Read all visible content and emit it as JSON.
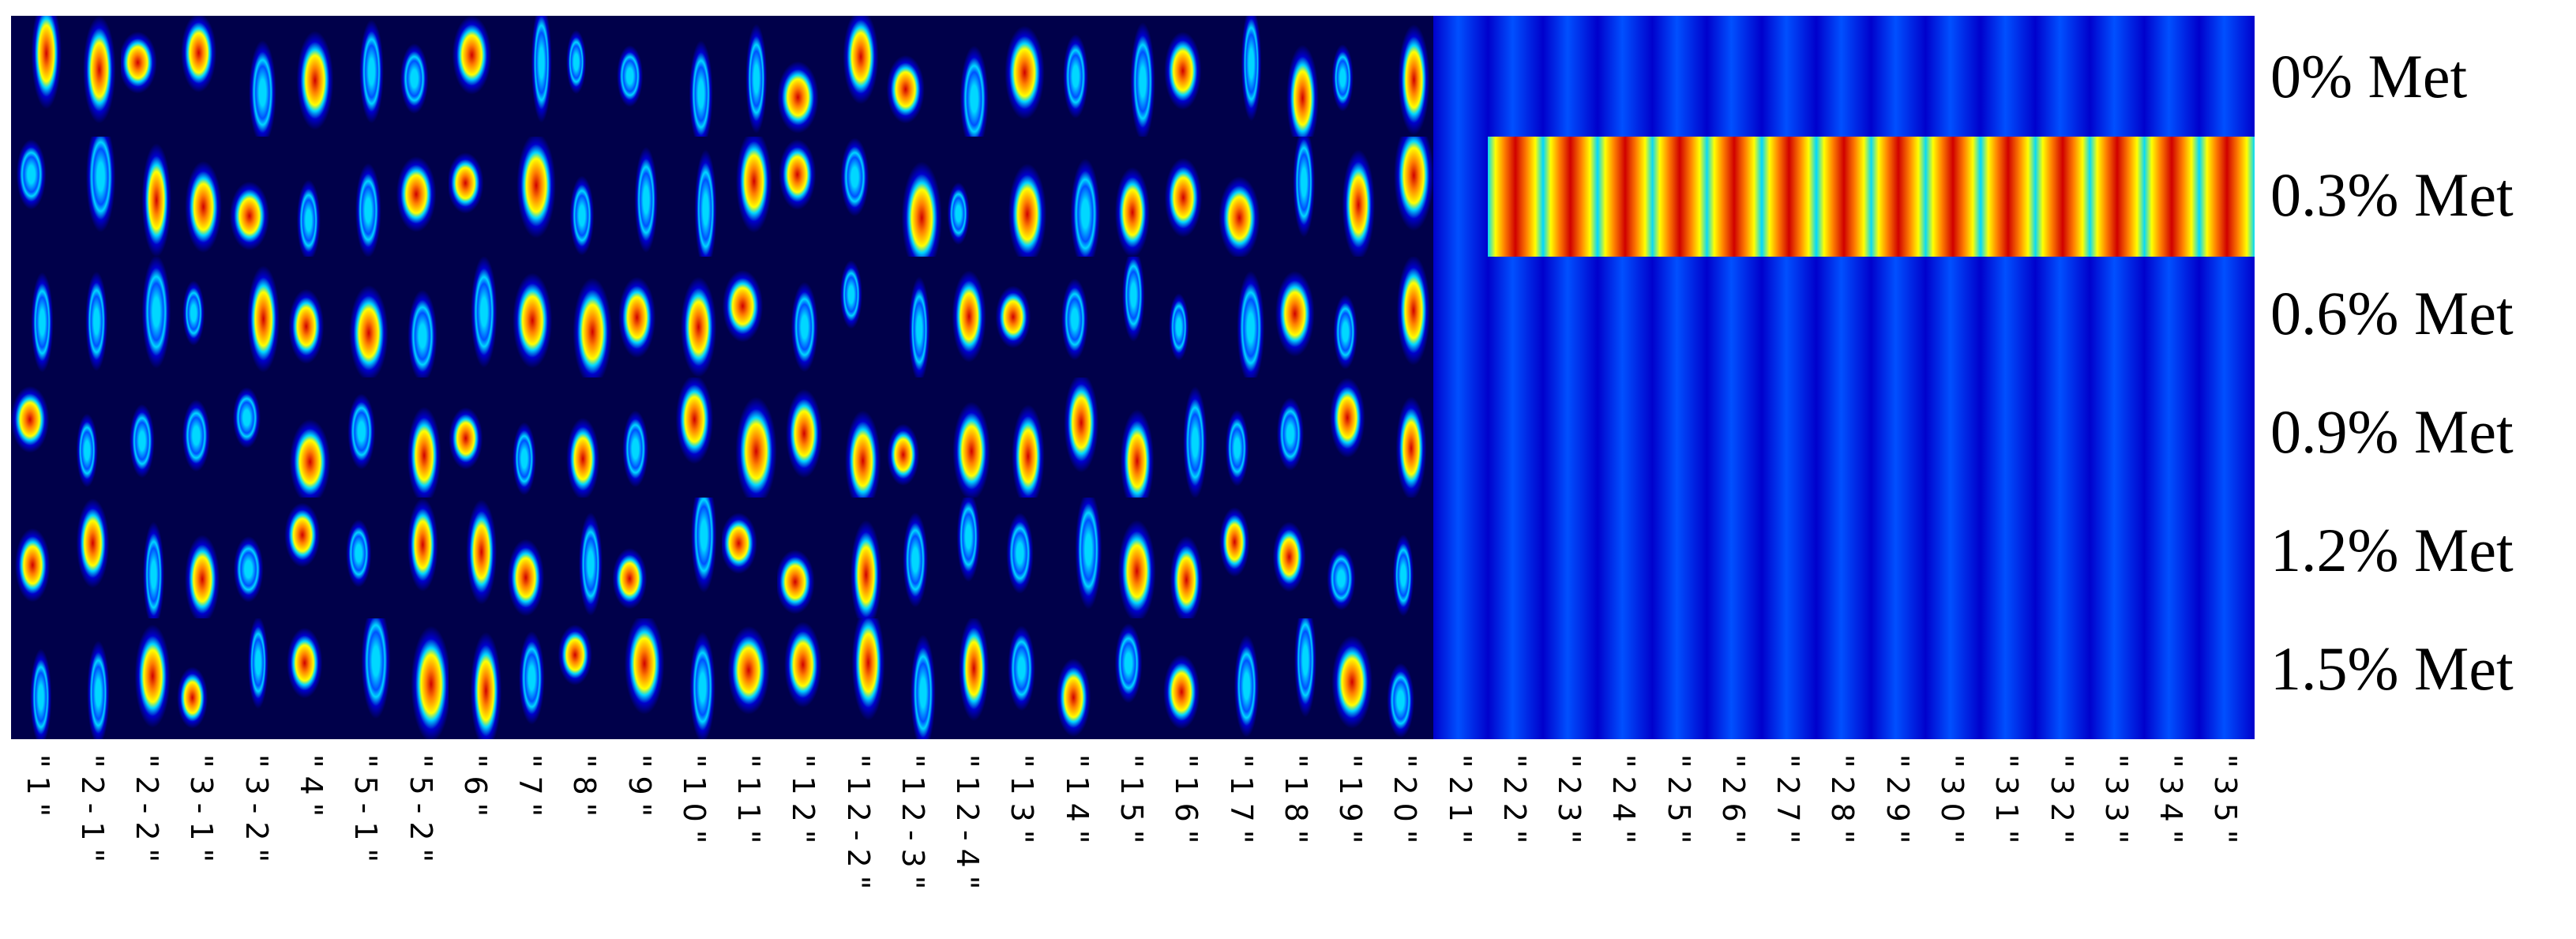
{
  "figure": {
    "row_labels": [
      "0% Met",
      "0.3% Met",
      "0.6% Met",
      "0.9% Met",
      "1.2% Met",
      "1.5% Met"
    ],
    "column_labels": [
      "\"1\"",
      "\"2-1\"",
      "\"2-2\"",
      "\"3-1\"",
      "\"3-2\"",
      "\"4\"",
      "\"5-1\"",
      "\"5-2\"",
      "\"6\"",
      "\"7\"",
      "\"8\"",
      "\"9\"",
      "\"10\"",
      "\"11\"",
      "\"12\"",
      "\"12-2\"",
      "\"12-3\"",
      "\"12-4\"",
      "\"13\"",
      "\"14\"",
      "\"15\"",
      "\"16\"",
      "\"17\"",
      "\"18\"",
      "\"19\"",
      "\"20\"",
      "\"21\"",
      "\"22\"",
      "\"23\"",
      "\"24\"",
      "\"25\"",
      "\"26\"",
      "\"27\"",
      "\"28\"",
      "\"29\"",
      "\"30\"",
      "\"31\"",
      "\"32\"",
      "\"33\"",
      "\"34\"",
      "\"35\""
    ],
    "colormap": [
      "#00004a",
      "#0000cc",
      "#0050ff",
      "#00d8ff",
      "#ffff00",
      "#ff8000",
      "#d00000"
    ],
    "background_color": "#00007a"
  }
}
